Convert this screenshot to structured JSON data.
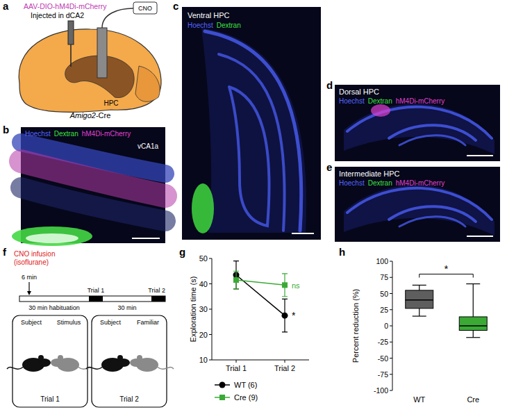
{
  "panels": {
    "a": {
      "label": "a",
      "virus": "AAV-DIO-hM4Di-mCherry",
      "injection": "Injected in dCA2",
      "drug": "CNO",
      "region": "HPC",
      "mouse": "Amigo2-Cre"
    },
    "b": {
      "label": "b",
      "stains": [
        "Hoechst",
        "Dextran",
        "hM4Di-mCherry"
      ],
      "region": "vCA1a"
    },
    "c": {
      "label": "c",
      "title": "Ventral HPC",
      "stains": [
        "Hoechst",
        "Dextran"
      ]
    },
    "d": {
      "label": "d",
      "title": "Dorsal HPC",
      "stains": [
        "Hoechst",
        "Dextran",
        "hM4Di-mCherry"
      ]
    },
    "e": {
      "label": "e",
      "title": "Intermediate HPC",
      "stains": [
        "Hoechst",
        "Dextran",
        "hM4Di-mCherry"
      ]
    },
    "f": {
      "label": "f",
      "infusion": "CNO infusion",
      "anesthesia": "(isoflurane)",
      "delay": "6 min",
      "habituation": "30 min habituation",
      "interval": "30 min",
      "trials": [
        {
          "name": "Trial 1",
          "subject": "Subject",
          "partner": "Stimulus"
        },
        {
          "name": "Trial 2",
          "subject": "Subject",
          "partner": "Familiar"
        }
      ]
    }
  },
  "chart_data": [
    {
      "panel_label": "g",
      "type": "line",
      "y_label": "Exploration time (s)",
      "categories": [
        "Trial 1",
        "Trial 2"
      ],
      "ylim": [
        10,
        50
      ],
      "yticks": [
        10,
        20,
        30,
        40,
        50
      ],
      "legend": "bottom-left",
      "series": [
        {
          "name": "WT (6)",
          "color": "#000000",
          "marker": "circle",
          "line_style": "solid",
          "values": [
            43.5,
            27.5
          ],
          "errors": [
            5.5,
            6.5
          ],
          "annotation": "*"
        },
        {
          "name": "Cre (9)",
          "color": "#3aaa35",
          "marker": "square",
          "line_style": "solid",
          "values": [
            41.5,
            39.5
          ],
          "errors": [
            3.5,
            4.5
          ],
          "annotation": "ns"
        }
      ]
    },
    {
      "panel_label": "h",
      "type": "box",
      "y_label": "Percent reduction (%)",
      "categories": [
        "WT",
        "Cre"
      ],
      "colors": [
        "#5e5e5e",
        "#3aaa35"
      ],
      "ylim": [
        -100,
        100
      ],
      "yticks": [
        -100,
        -75,
        -50,
        -25,
        0,
        25,
        50,
        75,
        100
      ],
      "values": [
        {
          "min": 15,
          "q1": 27,
          "median": 40,
          "q3": 55,
          "max": 63
        },
        {
          "min": -18,
          "q1": -7,
          "median": 0,
          "q3": 14,
          "max": 65
        }
      ],
      "annotation": "*"
    }
  ]
}
